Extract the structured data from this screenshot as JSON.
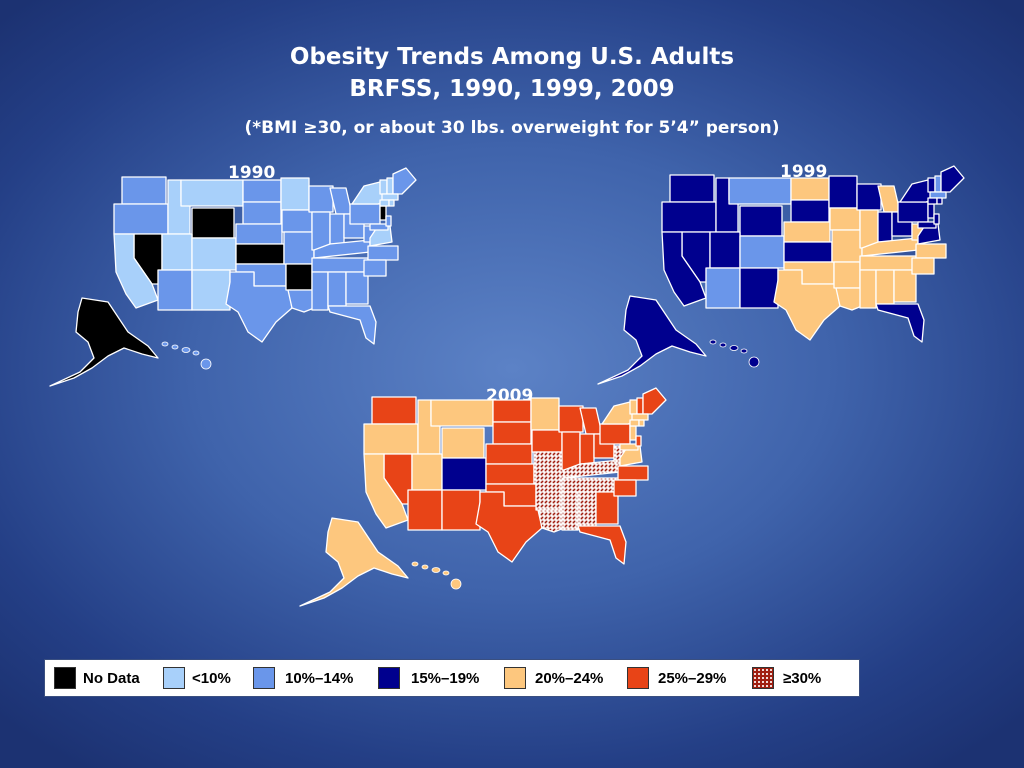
{
  "title": {
    "line1": "Obesity Trends Among U.S. Adults",
    "line2": "BRFSS, 1990, 1999, 2009",
    "line3": "(*BMI ≥30, or about 30 lbs. overweight for 5’4” person)"
  },
  "colors": {
    "nodata": "#000000",
    "lt10": "#a8d0fa",
    "p10_14": "#6a96ea",
    "p15_19": "#00008e",
    "p20_24": "#fdc77e",
    "p25_29": "#e84417",
    "p30plus": "#a01e10"
  },
  "legend": [
    {
      "key": "nodata",
      "label": "No Data"
    },
    {
      "key": "lt10",
      "label": "<10%"
    },
    {
      "key": "p10_14",
      "label": "10%–14%"
    },
    {
      "key": "p15_19",
      "label": "15%–19%"
    },
    {
      "key": "p20_24",
      "label": "20%–24%"
    },
    {
      "key": "p25_29",
      "label": "25%–29%"
    },
    {
      "key": "p30plus",
      "label": "≥30%"
    }
  ],
  "maps": [
    {
      "year": "1990",
      "states": {
        "WA": "p10_14",
        "OR": "p10_14",
        "CA": "lt10",
        "NV": "nodata",
        "ID": "lt10",
        "MT": "lt10",
        "WY": "nodata",
        "UT": "lt10",
        "CO": "lt10",
        "AZ": "p10_14",
        "NM": "lt10",
        "ND": "p10_14",
        "SD": "p10_14",
        "NE": "p10_14",
        "KS": "nodata",
        "OK": "p10_14",
        "TX": "p10_14",
        "MN": "lt10",
        "IA": "p10_14",
        "MO": "p10_14",
        "AR": "nodata",
        "LA": "p10_14",
        "WI": "p10_14",
        "IL": "p10_14",
        "MI": "p10_14",
        "IN": "p10_14",
        "OH": "p10_14",
        "KY": "p10_14",
        "TN": "p10_14",
        "MS": "p10_14",
        "AL": "p10_14",
        "GA": "p10_14",
        "FL": "p10_14",
        "WV": "p10_14",
        "VA": "lt10",
        "NC": "p10_14",
        "SC": "p10_14",
        "PA": "p10_14",
        "NY": "lt10",
        "NJ": "nodata",
        "MD": "p10_14",
        "DE": "p10_14",
        "VT": "lt10",
        "NH": "lt10",
        "ME": "p10_14",
        "MA": "lt10",
        "CT": "lt10",
        "RI": "lt10",
        "AK": "nodata",
        "HI": "p10_14"
      }
    },
    {
      "year": "1999",
      "states": {
        "WA": "p15_19",
        "OR": "p15_19",
        "CA": "p15_19",
        "NV": "p15_19",
        "ID": "p15_19",
        "MT": "p10_14",
        "WY": "p15_19",
        "UT": "p15_19",
        "CO": "p10_14",
        "AZ": "p10_14",
        "NM": "p15_19",
        "ND": "p20_24",
        "SD": "p15_19",
        "NE": "p20_24",
        "KS": "p15_19",
        "OK": "p20_24",
        "TX": "p20_24",
        "MN": "p15_19",
        "IA": "p20_24",
        "MO": "p20_24",
        "AR": "p20_24",
        "LA": "p20_24",
        "WI": "p15_19",
        "IL": "p20_24",
        "MI": "p20_24",
        "IN": "p15_19",
        "OH": "p15_19",
        "KY": "p20_24",
        "TN": "p20_24",
        "MS": "p20_24",
        "AL": "p20_24",
        "GA": "p20_24",
        "FL": "p15_19",
        "WV": "p20_24",
        "VA": "p15_19",
        "NC": "p20_24",
        "SC": "p20_24",
        "PA": "p15_19",
        "NY": "p15_19",
        "NJ": "p15_19",
        "MD": "p15_19",
        "DE": "p15_19",
        "VT": "p15_19",
        "NH": "p10_14",
        "ME": "p15_19",
        "MA": "p10_14",
        "CT": "p15_19",
        "RI": "p15_19",
        "AK": "p15_19",
        "HI": "p15_19"
      }
    },
    {
      "year": "2009",
      "states": {
        "WA": "p25_29",
        "OR": "p20_24",
        "CA": "p20_24",
        "NV": "p25_29",
        "ID": "p20_24",
        "MT": "p20_24",
        "WY": "p20_24",
        "UT": "p20_24",
        "CO": "p15_19",
        "AZ": "p25_29",
        "NM": "p25_29",
        "ND": "p25_29",
        "SD": "p25_29",
        "NE": "p25_29",
        "KS": "p25_29",
        "OK": "p25_29",
        "TX": "p25_29",
        "MN": "p20_24",
        "IA": "p25_29",
        "MO": "p30plus",
        "AR": "p30plus",
        "LA": "p30plus",
        "WI": "p25_29",
        "IL": "p25_29",
        "MI": "p25_29",
        "IN": "p25_29",
        "OH": "p25_29",
        "KY": "p30plus",
        "TN": "p30plus",
        "MS": "p30plus",
        "AL": "p30plus",
        "GA": "p25_29",
        "FL": "p25_29",
        "WV": "p30plus",
        "VA": "p20_24",
        "NC": "p25_29",
        "SC": "p25_29",
        "PA": "p25_29",
        "NY": "p20_24",
        "NJ": "p20_24",
        "MD": "p20_24",
        "DE": "p25_29",
        "VT": "p20_24",
        "NH": "p25_29",
        "ME": "p25_29",
        "MA": "p20_24",
        "CT": "p20_24",
        "RI": "p20_24",
        "AK": "p20_24",
        "HI": "p20_24"
      }
    }
  ]
}
